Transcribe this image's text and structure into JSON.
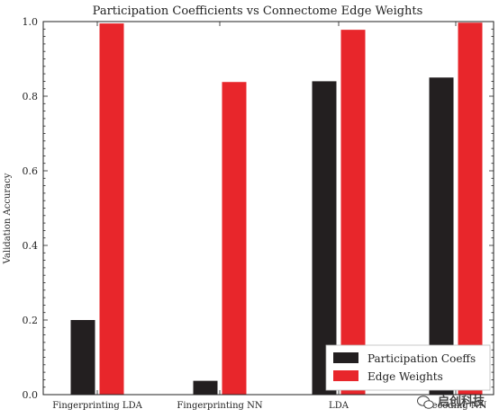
{
  "chart_data": {
    "type": "bar",
    "title": "Participation Coefficients vs Connectome Edge Weights",
    "xlabel": "",
    "ylabel": "Validation Accuracy",
    "categories": [
      "Fingerprinting LDA",
      "Fingerprinting NN",
      "LDA",
      "Decoding NN"
    ],
    "series": [
      {
        "name": "Participation Coeffs",
        "color": "#231f20",
        "values": [
          0.2,
          0.037,
          0.84,
          0.85
        ]
      },
      {
        "name": "Edge Weights",
        "color": "#e8262b",
        "values": [
          0.995,
          0.838,
          0.978,
          0.997
        ]
      }
    ],
    "ylim": [
      0,
      1.0
    ],
    "yticks": [
      "0.0",
      "0.2",
      "0.4",
      "0.6",
      "0.8",
      "1.0"
    ],
    "grid": false,
    "legend_position": "bottom-right"
  },
  "watermark": {
    "text": "启创科技",
    "icon": "wechat-icon"
  }
}
